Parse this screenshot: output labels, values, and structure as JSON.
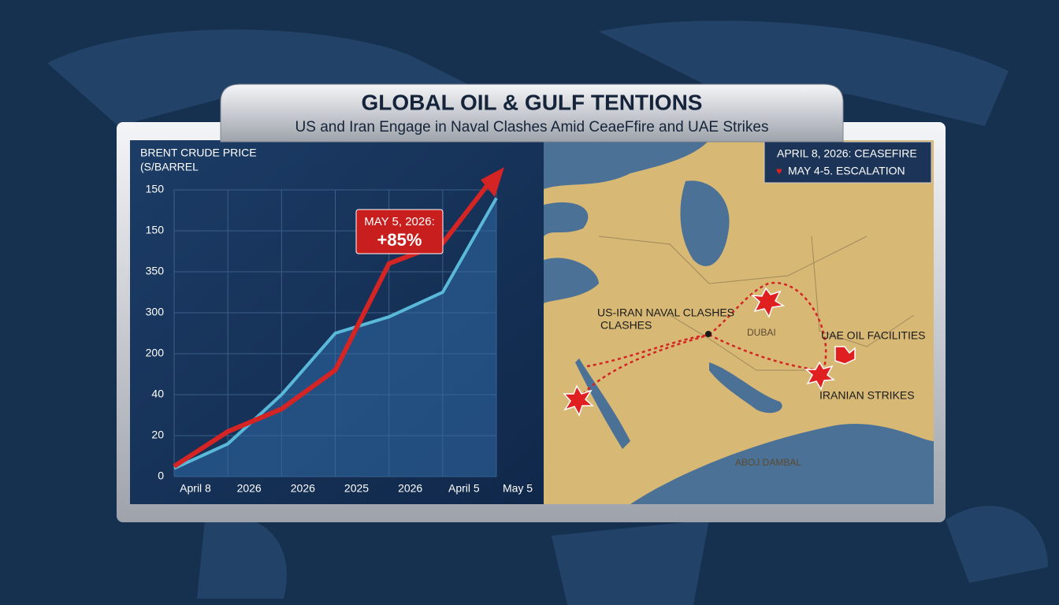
{
  "chart_data": {
    "type": "line",
    "title": "GLOBAL OIL & GULF TENTIONS",
    "subtitle": "US and Iran Engage in Naval Clashes Amid CeaeFfire and UAE Strikes",
    "y_label_line1": "BRENT CRUDE PRICE",
    "y_label_line2": "(S/BARREL",
    "categories": [
      "April 8",
      "2026",
      "2026",
      "2025",
      "2026",
      "April 5",
      "May 5"
    ],
    "series": [
      {
        "color": "#d42424",
        "values": [
          0.25,
          1.1,
          1.65,
          2.6,
          5.2,
          5.7,
          7.4
        ]
      },
      {
        "color": "#5ab8d8",
        "values": [
          0.2,
          0.8,
          2.0,
          3.5,
          3.9,
          4.5,
          6.8
        ]
      }
    ],
    "ylim": [
      0,
      7
    ],
    "yticks": [
      {
        "value": 0,
        "label": "0"
      },
      {
        "value": 1,
        "label": "20"
      },
      {
        "value": 2,
        "label": "40"
      },
      {
        "value": 3,
        "label": "200"
      },
      {
        "value": 4,
        "label": "300"
      },
      {
        "value": 5,
        "label": "350"
      },
      {
        "value": 6,
        "label": "150"
      },
      {
        "value": 7,
        "label": "150"
      }
    ],
    "grid": true,
    "annotation_line1": "MAY 5, 2026:",
    "annotation_line2": "+85%"
  },
  "map": {
    "legend": [
      "APRIL 8, 2026: CEASEFIRE",
      "MAY 4-5. ESCALATION"
    ],
    "labels": [
      "US-IRAN NAVAL CLASHES",
      "CLASHES",
      "DUBAI",
      "UAE OIL FACILITIES",
      "IRANIAN STRIKES",
      "ABOJ DAMBAL"
    ]
  }
}
